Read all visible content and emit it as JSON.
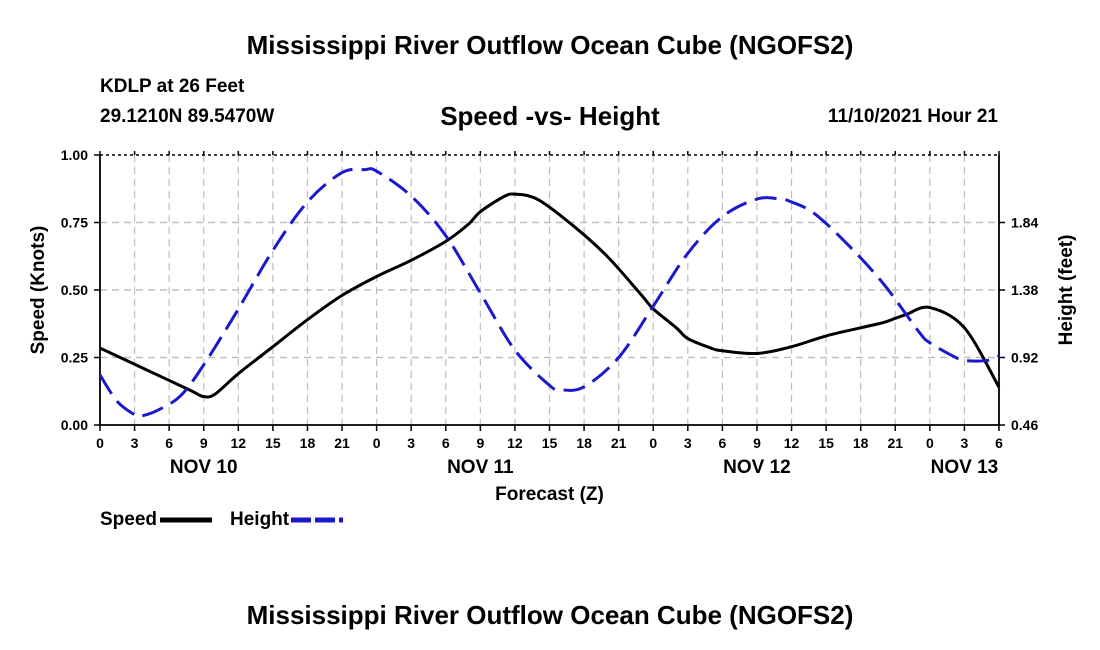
{
  "chart_data": {
    "type": "line",
    "title": "Mississippi River Outflow Ocean Cube (NGOFS2)",
    "station": "KDLP at 26 Feet",
    "location": "29.1210N  89.5470W",
    "subtitle": "Speed -vs- Height",
    "timestamp": "11/10/2021 Hour 21",
    "xlabel": "Forecast (Z)",
    "ylabel": "Speed (Knots)",
    "y2label": "Height (feet)",
    "x_unit": "hours from NOV 10 00Z",
    "xlim": [
      0,
      78
    ],
    "ylim": [
      0,
      1
    ],
    "y2lim": [
      0.46,
      2.3
    ],
    "yticks": [
      "0.00",
      "0.25",
      "0.50",
      "0.75",
      "1.00"
    ],
    "y2ticks": [
      "0.46",
      "0.92",
      "1.38",
      "1.84"
    ],
    "xtick_labels": [
      "0",
      "3",
      "6",
      "9",
      "12",
      "15",
      "18",
      "21",
      "0",
      "3",
      "6",
      "9",
      "12",
      "15",
      "18",
      "21",
      "0",
      "3",
      "6",
      "9",
      "12",
      "15",
      "18",
      "21",
      "0",
      "3",
      "6"
    ],
    "date_labels": [
      {
        "label": "NOV 10",
        "hour": 9
      },
      {
        "label": "NOV 11",
        "hour": 33
      },
      {
        "label": "NOV 12",
        "hour": 57
      },
      {
        "label": "NOV 13",
        "hour": 75
      }
    ],
    "series": [
      {
        "name": "Speed",
        "axis": "left",
        "color": "#000000",
        "dashed": false,
        "x": [
          0,
          3,
          6,
          8,
          9,
          10,
          12,
          15,
          18,
          21,
          24,
          27,
          30,
          32,
          33,
          35,
          36,
          38,
          41,
          44,
          47,
          48,
          50,
          51,
          53,
          54,
          57,
          60,
          63,
          66,
          68,
          69,
          70,
          72,
          75,
          78
        ],
        "y": [
          0.285,
          0.225,
          0.165,
          0.125,
          0.105,
          0.115,
          0.19,
          0.29,
          0.39,
          0.48,
          0.55,
          0.61,
          0.68,
          0.745,
          0.79,
          0.845,
          0.855,
          0.835,
          0.74,
          0.625,
          0.48,
          0.43,
          0.36,
          0.32,
          0.285,
          0.275,
          0.265,
          0.29,
          0.33,
          0.36,
          0.38,
          0.395,
          0.41,
          0.435,
          0.36,
          0.14
        ]
      },
      {
        "name": "Height",
        "axis": "right",
        "color": "#1a1acc",
        "dashed": true,
        "x": [
          0,
          1.5,
          3,
          3.5,
          5,
          7,
          9,
          12,
          15,
          18,
          21,
          23,
          24,
          27,
          30,
          33,
          36,
          39,
          40,
          42,
          45,
          48,
          51,
          54,
          57,
          59,
          60,
          62,
          65,
          68,
          71,
          72,
          74,
          75,
          77,
          78
        ],
        "y": [
          0.8,
          0.62,
          0.53,
          0.52,
          0.56,
          0.66,
          0.87,
          1.25,
          1.65,
          1.98,
          2.18,
          2.2,
          2.19,
          2.02,
          1.75,
          1.36,
          0.97,
          0.73,
          0.7,
          0.72,
          0.92,
          1.27,
          1.63,
          1.88,
          2.0,
          2.0,
          1.98,
          1.9,
          1.68,
          1.42,
          1.1,
          1.02,
          0.93,
          0.9,
          0.9,
          0.93
        ]
      }
    ],
    "legend": {
      "speed_label": "Speed",
      "height_label": "Height",
      "placement": "bottom-left"
    }
  }
}
